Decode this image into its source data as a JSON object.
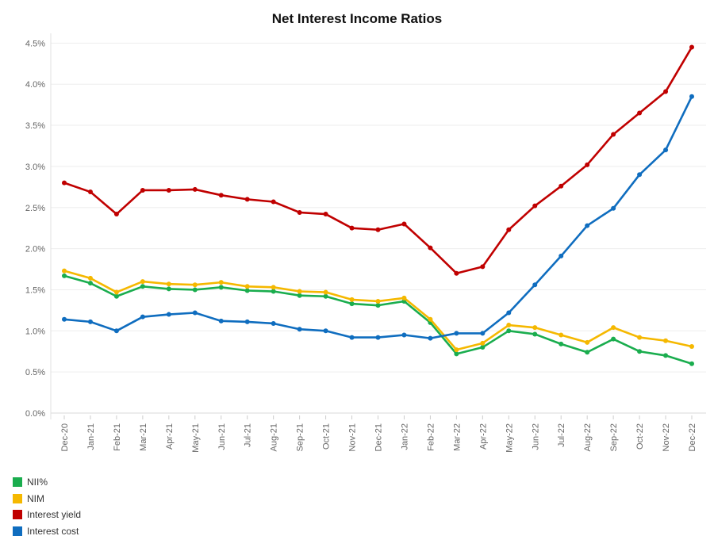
{
  "chart_data": {
    "type": "line",
    "title": "Net Interest Income Ratios",
    "xlabel": "",
    "ylabel": "",
    "ylim": [
      0,
      4.6
    ],
    "yticks": [
      "0.0%",
      "0.5%",
      "1.0%",
      "1.5%",
      "2.0%",
      "2.5%",
      "3.0%",
      "3.5%",
      "4.0%",
      "4.5%"
    ],
    "grid": true,
    "legend_position": "bottom-left",
    "categories": [
      "Dec-20",
      "Jan-21",
      "Feb-21",
      "Mar-21",
      "Apr-21",
      "May-21",
      "Jun-21",
      "Jul-21",
      "Aug-21",
      "Sep-21",
      "Oct-21",
      "Nov-21",
      "Dec-21",
      "Jan-22",
      "Feb-22",
      "Mar-22",
      "Apr-22",
      "May-22",
      "Jun-22",
      "Jul-22",
      "Aug-22",
      "Sep-22",
      "Oct-22",
      "Nov-22",
      "Dec-22"
    ],
    "series": [
      {
        "name": "NII%",
        "color": "#1aad4e",
        "values": [
          1.67,
          1.58,
          1.42,
          1.54,
          1.51,
          1.5,
          1.53,
          1.49,
          1.48,
          1.43,
          1.42,
          1.33,
          1.31,
          1.36,
          1.1,
          0.72,
          0.8,
          1.0,
          0.96,
          0.84,
          0.74,
          0.9,
          0.75,
          0.7,
          0.6
        ]
      },
      {
        "name": "NIM",
        "color": "#f5b800",
        "values": [
          1.73,
          1.64,
          1.47,
          1.6,
          1.57,
          1.56,
          1.59,
          1.54,
          1.53,
          1.48,
          1.47,
          1.38,
          1.36,
          1.4,
          1.14,
          0.77,
          0.85,
          1.07,
          1.04,
          0.95,
          0.86,
          1.04,
          0.92,
          0.88,
          0.81
        ]
      },
      {
        "name": "Interest yield",
        "color": "#c00000",
        "values": [
          2.8,
          2.69,
          2.42,
          2.71,
          2.71,
          2.72,
          2.65,
          2.6,
          2.57,
          2.44,
          2.42,
          2.25,
          2.23,
          2.3,
          2.01,
          1.7,
          1.78,
          2.23,
          2.52,
          2.76,
          3.02,
          3.39,
          3.65,
          3.91,
          4.45
        ]
      },
      {
        "name": "Interest cost",
        "color": "#0f6dbf",
        "values": [
          1.14,
          1.11,
          1.0,
          1.17,
          1.2,
          1.22,
          1.12,
          1.11,
          1.09,
          1.02,
          1.0,
          0.92,
          0.92,
          0.95,
          0.91,
          0.97,
          0.97,
          1.22,
          1.56,
          1.91,
          2.28,
          2.49,
          2.9,
          3.2,
          3.85
        ]
      }
    ]
  }
}
